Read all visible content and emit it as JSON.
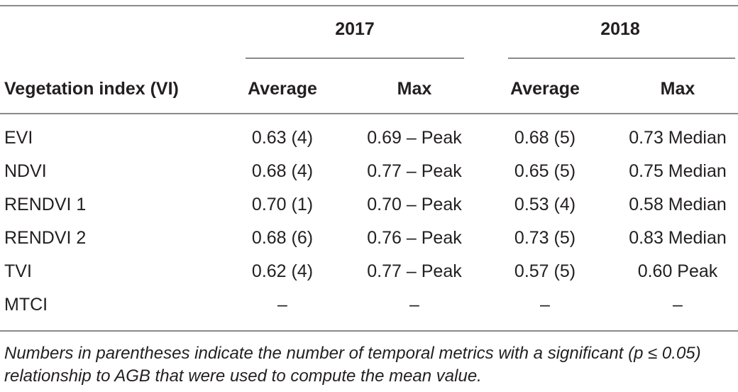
{
  "table": {
    "year_headers": [
      "2017",
      "2018"
    ],
    "row_label_header": "Vegetation index (VI)",
    "sub_headers": [
      "Average",
      "Max",
      "Average",
      "Max"
    ],
    "rows": [
      {
        "label": "EVI",
        "cells": [
          "0.63 (4)",
          "0.69 – Peak",
          "0.68 (5)",
          "0.73 Median"
        ]
      },
      {
        "label": "NDVI",
        "cells": [
          "0.68 (4)",
          "0.77 – Peak",
          "0.65 (5)",
          "0.75 Median"
        ]
      },
      {
        "label": "RENDVI 1",
        "cells": [
          "0.70 (1)",
          "0.70 – Peak",
          "0.53 (4)",
          "0.58 Median"
        ]
      },
      {
        "label": "RENDVI 2",
        "cells": [
          "0.68 (6)",
          "0.76 – Peak",
          "0.73 (5)",
          "0.83 Median"
        ]
      },
      {
        "label": "TVI",
        "cells": [
          "0.62 (4)",
          "0.77 – Peak",
          "0.57 (5)",
          "0.60 Peak"
        ]
      },
      {
        "label": "MTCI",
        "cells": [
          "–",
          "–",
          "–",
          "–"
        ]
      }
    ]
  },
  "footnote": "Numbers in parentheses indicate the number of temporal metrics with a significant (p ≤ 0.05) relationship to AGB that were used to compute the mean value."
}
